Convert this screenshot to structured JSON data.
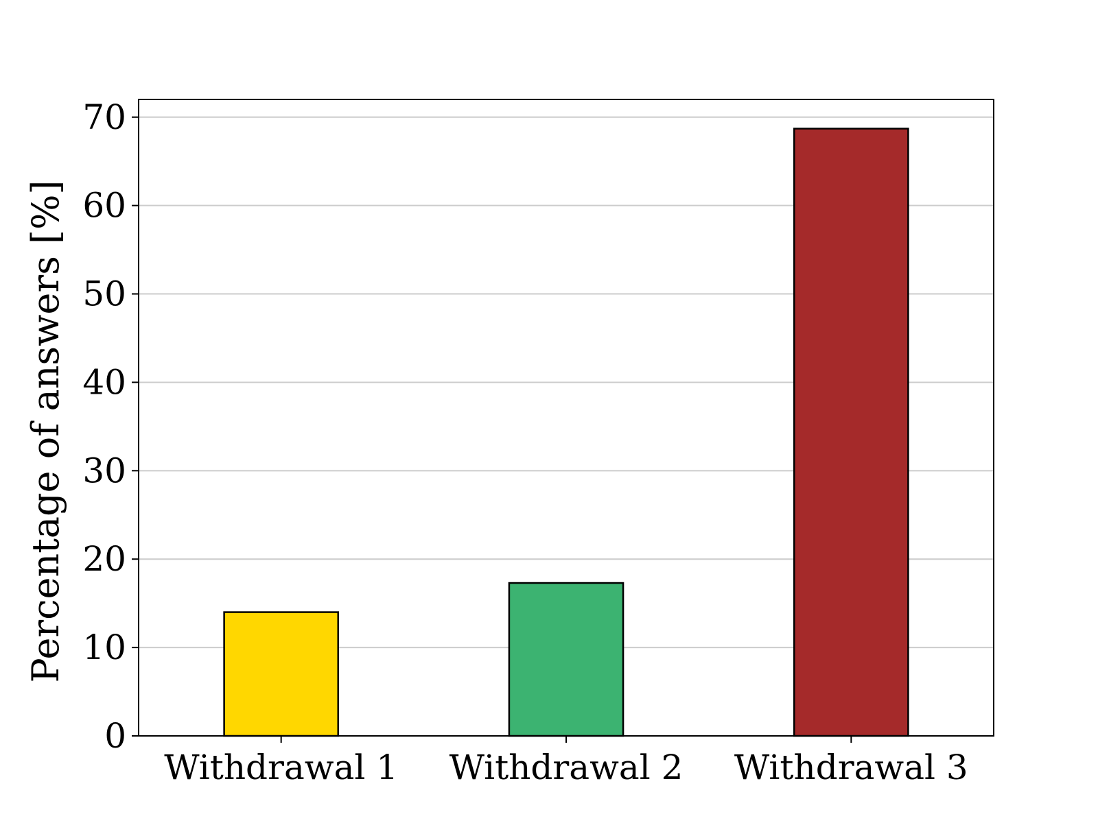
{
  "chart_data": {
    "type": "bar",
    "title": "",
    "xlabel": "",
    "ylabel": "Percentage of answers [%]",
    "categories": [
      "Withdrawal 1",
      "Withdrawal 2",
      "Withdrawal 3"
    ],
    "values": [
      14.0,
      17.3,
      68.7
    ],
    "colors": [
      "#ffd700",
      "#3cb371",
      "#a52a2a"
    ],
    "edge_color": "#000000",
    "ylim": [
      0,
      72
    ],
    "yticks": [
      0,
      10,
      20,
      30,
      40,
      50,
      60,
      70
    ],
    "grid": {
      "axis": "y",
      "on": true,
      "color": "#cccccc"
    },
    "legend": "none"
  }
}
